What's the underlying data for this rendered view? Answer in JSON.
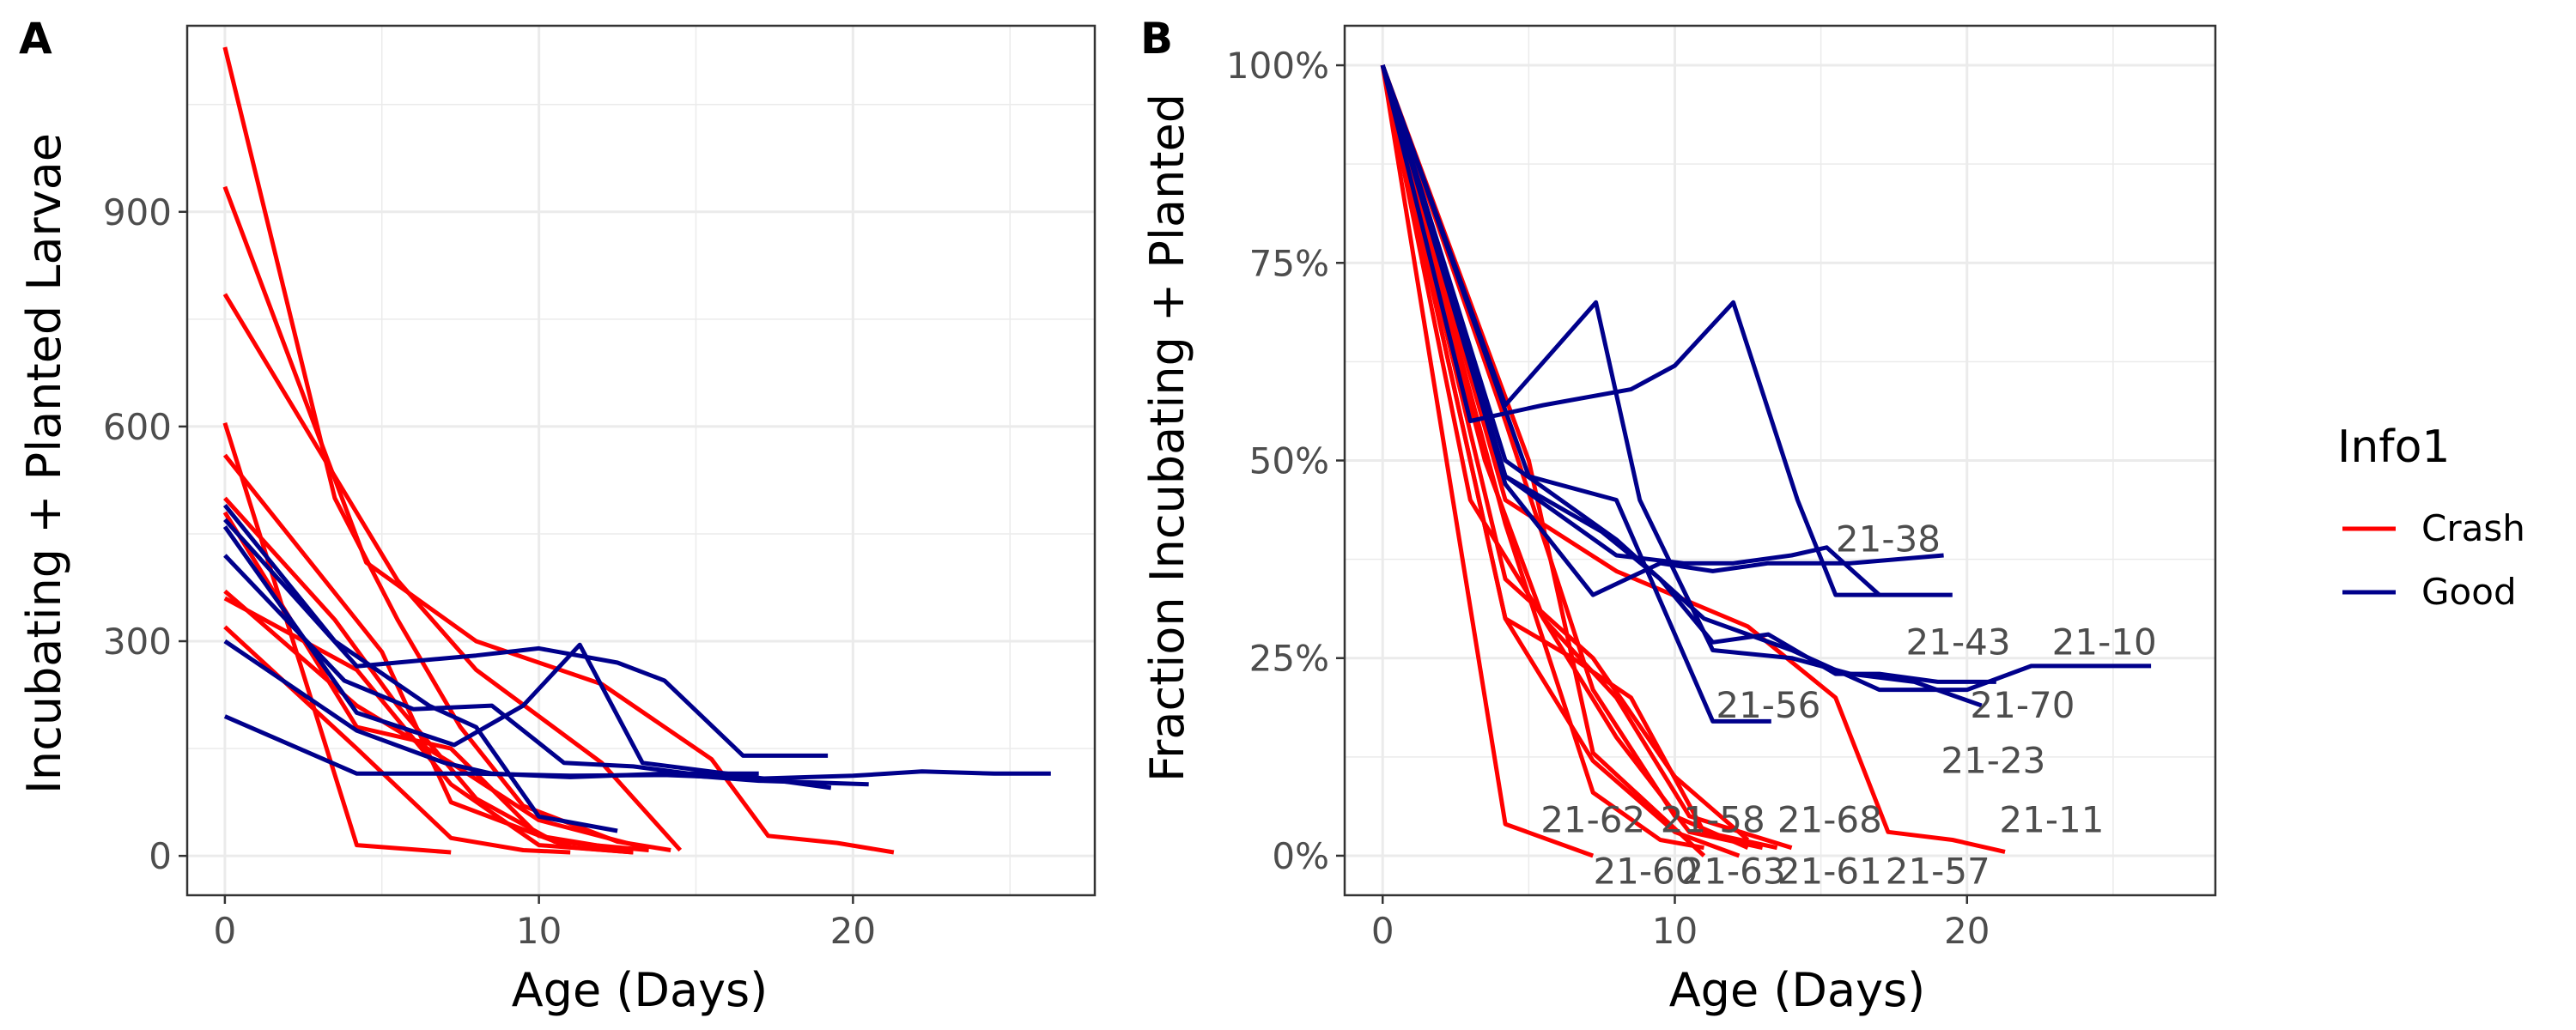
{
  "chart_data": [
    {
      "panel": "A",
      "type": "line",
      "xlabel": "Age (Days)",
      "ylabel": "Incubating + Planted Larvae",
      "xlim": [
        -1.2,
        27.7
      ],
      "ylim": [
        -55,
        1160
      ],
      "xticks": [
        0,
        10,
        20
      ],
      "yticks": [
        0,
        300,
        600,
        900
      ],
      "xtick_labels": [
        "0",
        "10",
        "20"
      ],
      "ytick_labels": [
        "0",
        "300",
        "600",
        "900"
      ],
      "grid": true,
      "series": [
        {
          "group": "Crash",
          "x": [
            0,
            3.5,
            5.5,
            7.5,
            9.5,
            12.5,
            14.2
          ],
          "y": [
            1130,
            500,
            330,
            180,
            70,
            20,
            8
          ]
        },
        {
          "group": "Crash",
          "x": [
            0,
            4.5,
            8,
            12,
            15.5,
            17.3,
            19.5,
            21.3
          ],
          "y": [
            935,
            410,
            300,
            240,
            135,
            28,
            18,
            5
          ]
        },
        {
          "group": "Crash",
          "x": [
            0,
            5.5,
            8,
            12,
            14.5
          ],
          "y": [
            785,
            385,
            260,
            130,
            8
          ]
        },
        {
          "group": "Crash",
          "x": [
            0,
            4.2,
            7.2
          ],
          "y": [
            605,
            15,
            5
          ]
        },
        {
          "group": "Crash",
          "x": [
            0,
            5,
            7.2,
            11,
            13
          ],
          "y": [
            560,
            285,
            75,
            12,
            5
          ]
        },
        {
          "group": "Crash",
          "x": [
            0,
            3.5,
            5.5,
            8,
            10.5,
            13.5
          ],
          "y": [
            500,
            330,
            210,
            80,
            20,
            8
          ]
        },
        {
          "group": "Crash",
          "x": [
            0,
            4.2,
            7.2,
            10,
            12.5
          ],
          "y": [
            480,
            180,
            150,
            28,
            10
          ]
        },
        {
          "group": "Crash",
          "x": [
            0,
            4.2,
            7.2,
            10,
            13.5
          ],
          "y": [
            370,
            210,
            130,
            50,
            10
          ]
        },
        {
          "group": "Crash",
          "x": [
            0,
            4.2,
            7.2,
            10,
            13
          ],
          "y": [
            360,
            260,
            100,
            15,
            5
          ]
        },
        {
          "group": "Crash",
          "x": [
            0,
            4.2,
            7.2,
            9.5,
            11
          ],
          "y": [
            320,
            150,
            25,
            8,
            5
          ]
        },
        {
          "group": "Good",
          "x": [
            0,
            3.5,
            6.5,
            8,
            10,
            12.5
          ],
          "y": [
            490,
            300,
            210,
            180,
            55,
            35
          ]
        },
        {
          "group": "Good",
          "x": [
            0,
            4.2,
            8,
            10,
            12.5,
            14,
            16.5,
            19.2
          ],
          "y": [
            470,
            265,
            280,
            290,
            270,
            245,
            140,
            140
          ]
        },
        {
          "group": "Good",
          "x": [
            0,
            4.2,
            7.3,
            9.5,
            11.3,
            13.3,
            16,
            19.3
          ],
          "y": [
            460,
            200,
            155,
            210,
            295,
            130,
            115,
            95
          ]
        },
        {
          "group": "Good",
          "x": [
            0,
            3.8,
            6,
            8.5,
            10.8,
            13,
            14.8,
            17
          ],
          "y": [
            420,
            245,
            205,
            210,
            130,
            125,
            115,
            115
          ]
        },
        {
          "group": "Good",
          "x": [
            0,
            4.2,
            7,
            8.5,
            11,
            14,
            17,
            20.5
          ],
          "y": [
            300,
            175,
            130,
            115,
            110,
            115,
            105,
            100
          ]
        },
        {
          "group": "Good",
          "x": [
            0,
            4.2,
            8,
            11,
            14,
            17,
            20,
            22.2,
            24.5,
            26.3
          ],
          "y": [
            195,
            115,
            115,
            112,
            113,
            108,
            112,
            118,
            115,
            115
          ]
        }
      ]
    },
    {
      "panel": "B",
      "type": "line",
      "xlabel": "Age (Days)",
      "ylabel": "Fraction Incubating + Planted",
      "xlim": [
        -1.3,
        28.5
      ],
      "ylim": [
        -0.05,
        1.05
      ],
      "xticks": [
        0,
        10,
        20
      ],
      "yticks": [
        0,
        0.25,
        0.5,
        0.75,
        1.0
      ],
      "xtick_labels": [
        "0",
        "10",
        "20"
      ],
      "ytick_labels": [
        "0%",
        "25%",
        "50%",
        "75%",
        "100%"
      ],
      "grid": true,
      "series": [
        {
          "group": "Crash",
          "x": [
            0,
            4.2,
            7.2
          ],
          "y": [
            1,
            0.04,
            0.0
          ]
        },
        {
          "group": "Crash",
          "x": [
            0,
            4.2,
            7.2,
            10,
            12.2
          ],
          "y": [
            1,
            0.3,
            0.12,
            0.03,
            0.0
          ]
        },
        {
          "group": "Crash",
          "x": [
            0,
            3,
            5.5,
            8,
            10.5,
            13
          ],
          "y": [
            1,
            0.45,
            0.3,
            0.15,
            0.03,
            0.01
          ]
        },
        {
          "group": "Crash",
          "x": [
            0,
            4.2,
            7.2,
            9.5,
            11
          ],
          "y": [
            1,
            0.42,
            0.08,
            0.02,
            0.01
          ]
        },
        {
          "group": "Crash",
          "x": [
            0,
            4.2,
            7.2,
            10,
            12.5
          ],
          "y": [
            1,
            0.35,
            0.25,
            0.1,
            0.02
          ]
        },
        {
          "group": "Crash",
          "x": [
            0,
            5,
            7.2,
            11
          ],
          "y": [
            1,
            0.5,
            0.13,
            0.0
          ]
        },
        {
          "group": "Crash",
          "x": [
            0,
            3.5,
            5.5,
            8,
            10.5,
            14
          ],
          "y": [
            1,
            0.5,
            0.3,
            0.2,
            0.05,
            0.01
          ]
        },
        {
          "group": "Crash",
          "x": [
            0,
            4.2,
            8,
            12.5,
            15.5,
            17.3,
            19.5,
            21.3
          ],
          "y": [
            1,
            0.45,
            0.36,
            0.29,
            0.2,
            0.03,
            0.02,
            0.005
          ]
        },
        {
          "group": "Crash",
          "x": [
            0,
            4.2,
            6.5,
            8.5,
            11,
            13.5
          ],
          "y": [
            1,
            0.3,
            0.25,
            0.2,
            0.03,
            0.01
          ]
        },
        {
          "group": "Crash",
          "x": [
            0,
            4.2,
            7.2,
            10,
            12.5
          ],
          "y": [
            1,
            0.55,
            0.21,
            0.05,
            0.01
          ]
        },
        {
          "group": "Good",
          "x": [
            0,
            4.2,
            7.2,
            9.5,
            11.3,
            13.2,
            16,
            19.2
          ],
          "y": [
            1,
            0.47,
            0.33,
            0.37,
            0.36,
            0.37,
            0.37,
            0.38
          ]
        },
        {
          "group": "Good",
          "x": [
            0,
            4.2,
            7.3,
            8.8,
            11.3,
            14,
            16,
            18.2,
            20.5
          ],
          "y": [
            1,
            0.57,
            0.7,
            0.45,
            0.26,
            0.25,
            0.23,
            0.22,
            0.19
          ]
        },
        {
          "group": "Good",
          "x": [
            0,
            3,
            5.5,
            8.5,
            10,
            12,
            14.2,
            15.5,
            17
          ],
          "y": [
            1,
            0.55,
            0.57,
            0.59,
            0.62,
            0.7,
            0.45,
            0.33,
            0.33
          ]
        },
        {
          "group": "Good",
          "x": [
            0,
            4.2,
            8,
            10.3,
            12,
            14,
            15.2,
            17,
            19.5
          ],
          "y": [
            1,
            0.48,
            0.38,
            0.37,
            0.37,
            0.38,
            0.39,
            0.33,
            0.33
          ]
        },
        {
          "group": "Good",
          "x": [
            0,
            5,
            8,
            11.3,
            13.3
          ],
          "y": [
            1,
            0.48,
            0.45,
            0.17,
            0.17
          ]
        },
        {
          "group": "Good",
          "x": [
            0,
            4.2,
            7.5,
            9.5,
            11.3,
            13.2,
            15.5,
            17,
            19,
            21
          ],
          "y": [
            1,
            0.48,
            0.41,
            0.35,
            0.27,
            0.28,
            0.23,
            0.23,
            0.22,
            0.22
          ]
        },
        {
          "group": "Good",
          "x": [
            0,
            4.2,
            8,
            11,
            14,
            17,
            20,
            22.2,
            24.5,
            26.3
          ],
          "y": [
            1,
            0.5,
            0.4,
            0.3,
            0.26,
            0.21,
            0.21,
            0.24,
            0.24,
            0.24
          ]
        }
      ],
      "run_labels": [
        {
          "text": "21-38",
          "x": 17.3,
          "y": 0.4
        },
        {
          "text": "21-43",
          "x": 19.7,
          "y": 0.27
        },
        {
          "text": "21-10",
          "x": 24.7,
          "y": 0.27
        },
        {
          "text": "21-56",
          "x": 13.2,
          "y": 0.19
        },
        {
          "text": "21-70",
          "x": 21.9,
          "y": 0.19
        },
        {
          "text": "21-23",
          "x": 20.9,
          "y": 0.12
        },
        {
          "text": "21-62",
          "x": 7.2,
          "y": 0.045
        },
        {
          "text": "21-58",
          "x": 11.3,
          "y": 0.045
        },
        {
          "text": "21-68",
          "x": 15.3,
          "y": 0.045
        },
        {
          "text": "21-11",
          "x": 22.9,
          "y": 0.045
        },
        {
          "text": "21-60",
          "x": 9.0,
          "y": -0.02
        },
        {
          "text": "21-63",
          "x": 12.0,
          "y": -0.02
        },
        {
          "text": "21-61",
          "x": 15.3,
          "y": -0.02
        },
        {
          "text": "21-57",
          "x": 19.0,
          "y": -0.02
        }
      ]
    }
  ],
  "legend": {
    "title": "Info1",
    "placement": "right",
    "items": [
      {
        "label": "Crash",
        "color": "#ff0000"
      },
      {
        "label": "Good",
        "color": "#00008b"
      }
    ]
  },
  "colors": {
    "Crash": "#ff0000",
    "Good": "#00008b"
  }
}
